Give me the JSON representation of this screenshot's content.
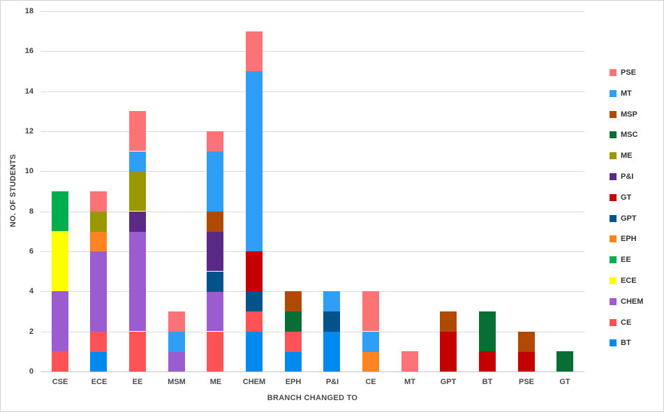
{
  "style": {
    "grid_color": "#d9d9d9",
    "axis_line_color": "#c6c6c6",
    "text_color": "#404040",
    "frame_border_color": "#d2d2d2",
    "background": "#ffffff"
  },
  "chart_data": {
    "type": "bar",
    "stacked": true,
    "title": "",
    "xlabel": "BRANCH CHANGED TO",
    "ylabel": "NO. OF STUDENTS",
    "ylim": [
      0,
      18
    ],
    "ytick_step": 2,
    "grid": true,
    "legend_position": "right",
    "categories": [
      "CSE",
      "ECE",
      "EE",
      "MSM",
      "ME",
      "CHEM",
      "EPH",
      "P&I",
      "CE",
      "MT",
      "GPT",
      "BT",
      "PSE",
      "GT"
    ],
    "series": [
      {
        "name": "BT",
        "color": "#008AEF",
        "values": [
          0,
          1,
          0,
          0,
          0,
          2,
          1,
          2,
          0,
          0,
          0,
          0,
          0,
          0
        ]
      },
      {
        "name": "CE",
        "color": "#FE5356",
        "values": [
          1,
          1,
          2,
          0,
          2,
          1,
          1,
          0,
          0,
          0,
          0,
          0,
          0,
          0
        ]
      },
      {
        "name": "CHEM",
        "color": "#9A5CD0",
        "values": [
          3,
          4,
          5,
          1,
          2,
          0,
          0,
          0,
          0,
          0,
          0,
          0,
          0,
          0
        ]
      },
      {
        "name": "ECE",
        "color": "#FFFF00",
        "values": [
          3,
          0,
          0,
          0,
          0,
          0,
          0,
          0,
          0,
          0,
          0,
          0,
          0,
          0
        ]
      },
      {
        "name": "EE",
        "color": "#00AE4F",
        "values": [
          2,
          0,
          0,
          0,
          0,
          0,
          0,
          0,
          0,
          0,
          0,
          0,
          0,
          0
        ]
      },
      {
        "name": "EPH",
        "color": "#FD8421",
        "values": [
          0,
          1,
          0,
          0,
          0,
          0,
          0,
          0,
          1,
          0,
          0,
          0,
          0,
          0
        ]
      },
      {
        "name": "GPT",
        "color": "#02538B",
        "values": [
          0,
          0,
          0,
          0,
          1,
          1,
          0,
          1,
          0,
          0,
          0,
          0,
          0,
          0
        ]
      },
      {
        "name": "GT",
        "color": "#C40001",
        "values": [
          0,
          0,
          0,
          0,
          0,
          2,
          0,
          0,
          0,
          0,
          2,
          1,
          1,
          0
        ]
      },
      {
        "name": "P&I",
        "color": "#5B2A87",
        "values": [
          0,
          0,
          1,
          0,
          2,
          0,
          0,
          0,
          0,
          0,
          0,
          0,
          0,
          0
        ]
      },
      {
        "name": "ME",
        "color": "#9A9800",
        "values": [
          0,
          1,
          2,
          0,
          0,
          0,
          0,
          0,
          0,
          0,
          0,
          0,
          0,
          0
        ]
      },
      {
        "name": "MSC",
        "color": "#076F33",
        "values": [
          0,
          0,
          0,
          0,
          0,
          0,
          1,
          0,
          0,
          0,
          0,
          2,
          0,
          1
        ]
      },
      {
        "name": "MSP",
        "color": "#B04A02",
        "values": [
          0,
          0,
          0,
          0,
          1,
          0,
          1,
          0,
          0,
          0,
          1,
          0,
          1,
          0
        ]
      },
      {
        "name": "MT",
        "color": "#2E9EF7",
        "values": [
          0,
          0,
          1,
          1,
          3,
          9,
          0,
          1,
          1,
          0,
          0,
          0,
          0,
          0
        ]
      },
      {
        "name": "PSE",
        "color": "#FB7377",
        "values": [
          0,
          1,
          2,
          1,
          1,
          2,
          0,
          0,
          2,
          1,
          0,
          0,
          0,
          0
        ]
      }
    ],
    "totals": {
      "CSE": 9,
      "ECE": 9,
      "EE": 13,
      "MSM": 3,
      "ME": 12,
      "CHEM": 17,
      "EPH": 4,
      "P&I": 4,
      "CE": 4,
      "MT": 1,
      "GPT": 3,
      "BT": 3,
      "PSE": 2,
      "GT": 1
    },
    "legend": [
      "PSE",
      "MT",
      "MSP",
      "MSC",
      "ME",
      "P&I",
      "GT",
      "GPT",
      "EPH",
      "EE",
      "ECE",
      "CHEM",
      "CE",
      "BT"
    ]
  }
}
